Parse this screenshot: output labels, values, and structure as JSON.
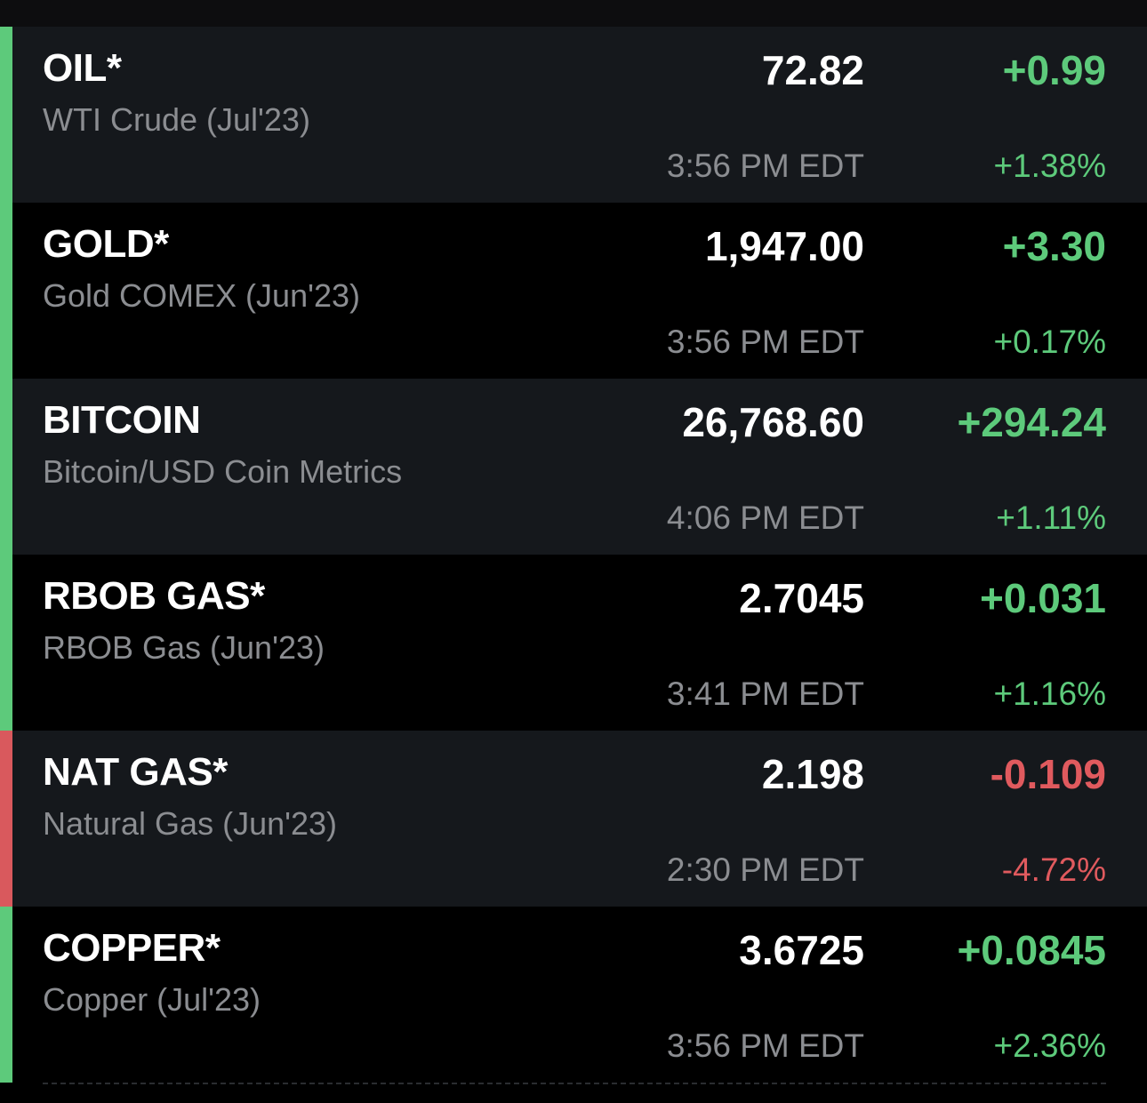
{
  "colors": {
    "positive": "#5dca7b",
    "negative": "#e05a5e",
    "row_dark": "#15181c",
    "row_black": "#000000",
    "muted_text": "#8b8d91"
  },
  "rows": [
    {
      "symbol": "OIL*",
      "name": "WTI Crude (Jul'23)",
      "price": "72.82",
      "change": "+0.99",
      "time": "3:56 PM EDT",
      "pct": "+1.38%",
      "direction": "up"
    },
    {
      "symbol": "GOLD*",
      "name": "Gold COMEX (Jun'23)",
      "price": "1,947.00",
      "change": "+3.30",
      "time": "3:56 PM EDT",
      "pct": "+0.17%",
      "direction": "up"
    },
    {
      "symbol": "BITCOIN",
      "name": "Bitcoin/USD Coin Metrics",
      "price": "26,768.60",
      "change": "+294.24",
      "time": "4:06 PM EDT",
      "pct": "+1.11%",
      "direction": "up"
    },
    {
      "symbol": "RBOB GAS*",
      "name": "RBOB Gas (Jun'23)",
      "price": "2.7045",
      "change": "+0.031",
      "time": "3:41 PM EDT",
      "pct": "+1.16%",
      "direction": "up"
    },
    {
      "symbol": "NAT GAS*",
      "name": "Natural Gas (Jun'23)",
      "price": "2.198",
      "change": "-0.109",
      "time": "2:30 PM EDT",
      "pct": "-4.72%",
      "direction": "down"
    },
    {
      "symbol": "COPPER*",
      "name": "Copper (Jul'23)",
      "price": "3.6725",
      "change": "+0.0845",
      "time": "3:56 PM EDT",
      "pct": "+2.36%",
      "direction": "up"
    }
  ]
}
